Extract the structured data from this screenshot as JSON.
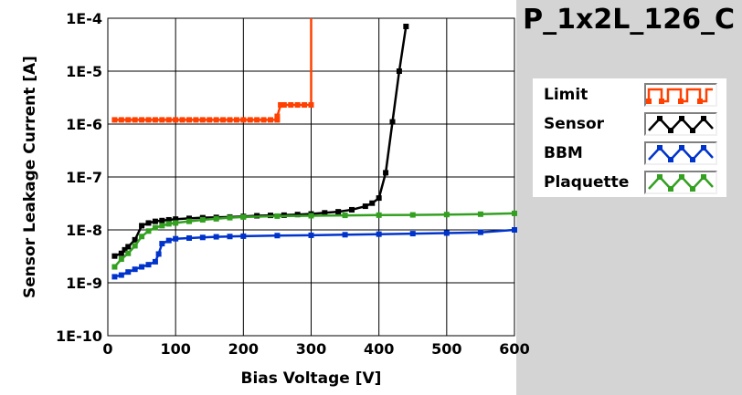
{
  "chart_data": {
    "type": "line",
    "title": "P_1x2L_126_C",
    "xlabel": "Bias Voltage [V]",
    "ylabel": "Sensor Leakage Current [A]",
    "xlim": [
      0,
      600
    ],
    "ylim": [
      1e-10,
      0.0001
    ],
    "yscale": "log",
    "x_ticks": [
      0,
      100,
      200,
      300,
      400,
      500,
      600
    ],
    "y_ticks": [
      1e-10,
      1e-09,
      1e-08,
      1e-07,
      1e-06,
      1e-05,
      0.0001
    ],
    "x_tick_labels": [
      "0",
      "100",
      "200",
      "300",
      "400",
      "500",
      "600"
    ],
    "y_tick_labels": [
      "1E-10",
      "1E-9",
      "1E-8",
      "1E-7",
      "1E-6",
      "1E-5",
      "1E-4"
    ],
    "grid": true,
    "legend_position": "right",
    "series": [
      {
        "name": "Limit",
        "color": "#ff4000",
        "points": [
          [
            10,
            1.2e-06
          ],
          [
            20,
            1.2e-06
          ],
          [
            30,
            1.2e-06
          ],
          [
            40,
            1.2e-06
          ],
          [
            50,
            1.2e-06
          ],
          [
            60,
            1.2e-06
          ],
          [
            70,
            1.2e-06
          ],
          [
            80,
            1.2e-06
          ],
          [
            90,
            1.2e-06
          ],
          [
            100,
            1.2e-06
          ],
          [
            110,
            1.2e-06
          ],
          [
            120,
            1.2e-06
          ],
          [
            130,
            1.2e-06
          ],
          [
            140,
            1.2e-06
          ],
          [
            150,
            1.2e-06
          ],
          [
            160,
            1.2e-06
          ],
          [
            170,
            1.2e-06
          ],
          [
            180,
            1.2e-06
          ],
          [
            190,
            1.2e-06
          ],
          [
            200,
            1.2e-06
          ],
          [
            210,
            1.2e-06
          ],
          [
            220,
            1.2e-06
          ],
          [
            230,
            1.2e-06
          ],
          [
            240,
            1.2e-06
          ],
          [
            250,
            1.2e-06
          ],
          [
            250,
            1.4e-06
          ],
          [
            255,
            2.3e-06
          ],
          [
            260,
            2.3e-06
          ],
          [
            270,
            2.3e-06
          ],
          [
            280,
            2.3e-06
          ],
          [
            290,
            2.3e-06
          ],
          [
            300,
            2.3e-06
          ],
          [
            300,
            0.0001
          ]
        ]
      },
      {
        "name": "Sensor",
        "color": "#000000",
        "points": [
          [
            10,
            3.2e-09
          ],
          [
            20,
            3.6e-09
          ],
          [
            25,
            4.2e-09
          ],
          [
            30,
            4.8e-09
          ],
          [
            40,
            6.5e-09
          ],
          [
            50,
            1.2e-08
          ],
          [
            60,
            1.35e-08
          ],
          [
            70,
            1.45e-08
          ],
          [
            80,
            1.5e-08
          ],
          [
            90,
            1.55e-08
          ],
          [
            100,
            1.6e-08
          ],
          [
            120,
            1.65e-08
          ],
          [
            140,
            1.7e-08
          ],
          [
            160,
            1.72e-08
          ],
          [
            180,
            1.75e-08
          ],
          [
            200,
            1.8e-08
          ],
          [
            220,
            1.85e-08
          ],
          [
            240,
            1.88e-08
          ],
          [
            260,
            1.9e-08
          ],
          [
            280,
            1.95e-08
          ],
          [
            300,
            2e-08
          ],
          [
            320,
            2.1e-08
          ],
          [
            340,
            2.2e-08
          ],
          [
            360,
            2.4e-08
          ],
          [
            380,
            2.8e-08
          ],
          [
            390,
            3.2e-08
          ],
          [
            400,
            4e-08
          ],
          [
            410,
            1.2e-07
          ],
          [
            420,
            1.1e-06
          ],
          [
            430,
            1e-05
          ],
          [
            440,
            7e-05
          ]
        ]
      },
      {
        "name": "BBM",
        "color": "#0033cc",
        "points": [
          [
            10,
            1.3e-09
          ],
          [
            20,
            1.4e-09
          ],
          [
            30,
            1.6e-09
          ],
          [
            40,
            1.8e-09
          ],
          [
            50,
            2e-09
          ],
          [
            60,
            2.2e-09
          ],
          [
            70,
            2.5e-09
          ],
          [
            75,
            3.5e-09
          ],
          [
            80,
            5.5e-09
          ],
          [
            90,
            6.3e-09
          ],
          [
            100,
            6.8e-09
          ],
          [
            120,
            7e-09
          ],
          [
            140,
            7.2e-09
          ],
          [
            160,
            7.4e-09
          ],
          [
            180,
            7.5e-09
          ],
          [
            200,
            7.6e-09
          ],
          [
            250,
            7.8e-09
          ],
          [
            300,
            7.9e-09
          ],
          [
            350,
            8.1e-09
          ],
          [
            400,
            8.3e-09
          ],
          [
            450,
            8.5e-09
          ],
          [
            500,
            8.7e-09
          ],
          [
            550,
            9e-09
          ],
          [
            600,
            1e-08
          ]
        ]
      },
      {
        "name": "Plaquette",
        "color": "#33a020",
        "points": [
          [
            10,
            2e-09
          ],
          [
            20,
            2.8e-09
          ],
          [
            30,
            3.6e-09
          ],
          [
            40,
            5e-09
          ],
          [
            50,
            7.5e-09
          ],
          [
            60,
            9.5e-09
          ],
          [
            70,
            1.1e-08
          ],
          [
            80,
            1.2e-08
          ],
          [
            90,
            1.3e-08
          ],
          [
            100,
            1.35e-08
          ],
          [
            120,
            1.45e-08
          ],
          [
            140,
            1.55e-08
          ],
          [
            160,
            1.62e-08
          ],
          [
            180,
            1.7e-08
          ],
          [
            200,
            1.75e-08
          ],
          [
            250,
            1.82e-08
          ],
          [
            300,
            1.85e-08
          ],
          [
            350,
            1.88e-08
          ],
          [
            400,
            1.9e-08
          ],
          [
            450,
            1.92e-08
          ],
          [
            500,
            1.95e-08
          ],
          [
            550,
            1.98e-08
          ],
          [
            600,
            2.05e-08
          ]
        ]
      }
    ]
  }
}
